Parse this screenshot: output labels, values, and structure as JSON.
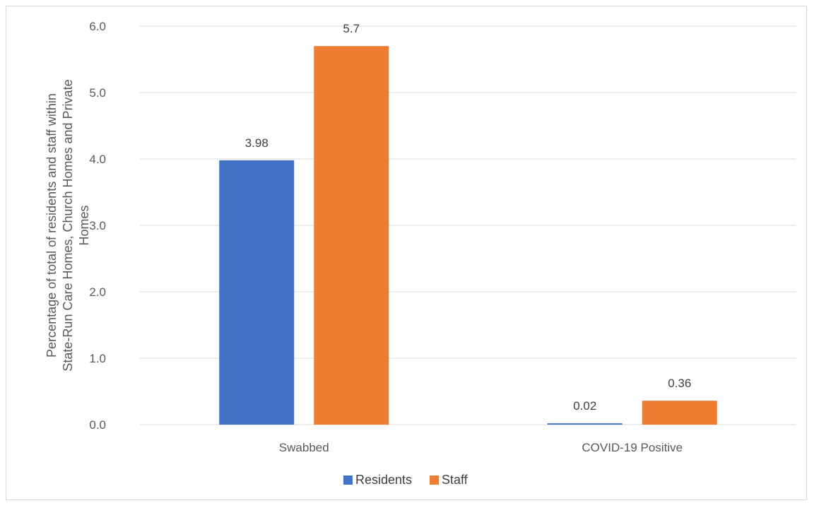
{
  "chart_data": {
    "type": "bar",
    "title": "",
    "xlabel": "",
    "ylabel": "Percentage of total of residents and staff within State-Run Care Homes, Church Homes and Private Homes",
    "ylabel_lines": [
      "Percentage of total of residents and staff within",
      "State-Run Care Homes, Church Homes and Private",
      "Homes"
    ],
    "categories": [
      "Swabbed",
      "COVID-19 Positive"
    ],
    "series": [
      {
        "name": "Residents",
        "color": "#4472c4",
        "values": [
          3.98,
          0.02
        ],
        "labels": [
          "3.98",
          "0.02"
        ]
      },
      {
        "name": "Staff",
        "color": "#ed7d31",
        "values": [
          5.7,
          0.36
        ],
        "labels": [
          "5.7",
          "0.36"
        ]
      }
    ],
    "ylim": [
      0,
      6.0
    ],
    "yticks": [
      "0.0",
      "1.0",
      "2.0",
      "3.0",
      "4.0",
      "5.0",
      "6.0"
    ],
    "grid": true,
    "legend_position": "bottom"
  }
}
